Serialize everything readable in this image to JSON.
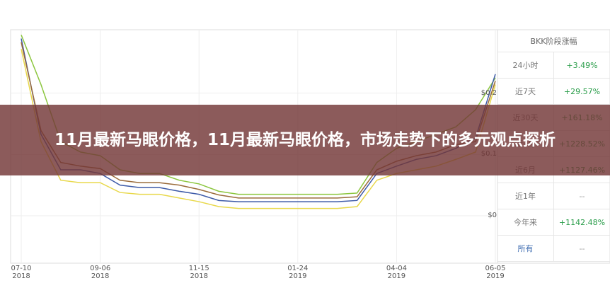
{
  "banner": {
    "title": "11月最新马眼价格，11月最新马眼价格，市场走势下的多元观点探析"
  },
  "chart_data": {
    "type": "line",
    "categories": [
      "07-10\n2018",
      null,
      null,
      null,
      "09-06\n2018",
      null,
      null,
      null,
      null,
      "11-15\n2018",
      null,
      null,
      null,
      null,
      "01-24\n2019",
      null,
      null,
      null,
      null,
      "04-04\n2019",
      null,
      null,
      null,
      null,
      "06-05\n2019"
    ],
    "series": [
      {
        "color": "#8cc63f",
        "values": [
          0.295,
          0.214,
          0.121,
          0.104,
          0.098,
          0.075,
          0.069,
          0.069,
          0.058,
          0.052,
          0.04,
          0.035,
          0.035,
          0.035,
          0.035,
          0.035,
          0.035,
          0.037,
          0.087,
          0.11,
          0.121,
          0.133,
          0.145,
          0.173,
          0.225
        ]
      },
      {
        "color": "#3d5aa8",
        "values": [
          0.289,
          0.133,
          0.075,
          0.075,
          0.069,
          0.05,
          0.046,
          0.046,
          0.04,
          0.035,
          0.025,
          0.023,
          0.023,
          0.023,
          0.023,
          0.023,
          0.023,
          0.025,
          0.069,
          0.081,
          0.092,
          0.098,
          0.11,
          0.127,
          0.231
        ]
      },
      {
        "color": "#e8d84a",
        "values": [
          0.272,
          0.121,
          0.058,
          0.054,
          0.054,
          0.038,
          0.035,
          0.035,
          0.029,
          0.023,
          0.015,
          0.012,
          0.012,
          0.012,
          0.012,
          0.012,
          0.012,
          0.015,
          0.058,
          0.069,
          0.075,
          0.081,
          0.092,
          0.104,
          0.214
        ]
      },
      {
        "color": "#9a6b3a",
        "values": [
          0.283,
          0.139,
          0.087,
          0.081,
          0.077,
          0.058,
          0.054,
          0.054,
          0.05,
          0.043,
          0.034,
          0.029,
          0.029,
          0.029,
          0.029,
          0.029,
          0.029,
          0.031,
          0.075,
          0.089,
          0.098,
          0.104,
          0.116,
          0.121,
          0.22
        ]
      }
    ],
    "ylim": [
      0,
      0.3
    ],
    "yticks": [
      {
        "value": 0,
        "label": "$0"
      },
      {
        "value": 0.1,
        "label": "$0.1"
      },
      {
        "value": 0.2,
        "label": "$0.2"
      }
    ],
    "grid": true
  },
  "table": {
    "header": "BKK阶段涨幅",
    "rows": [
      [
        "24小时",
        "+3.49%"
      ],
      [
        "近7天",
        "+29.57%"
      ],
      [
        "近30天",
        "+161.18%"
      ],
      [
        "近3月",
        "+1228.52%"
      ],
      [
        "近6月",
        "+1127.46%"
      ],
      [
        "近1年",
        "--"
      ],
      [
        "今年来",
        "+1142.48%"
      ],
      [
        "所有",
        "--"
      ]
    ]
  }
}
